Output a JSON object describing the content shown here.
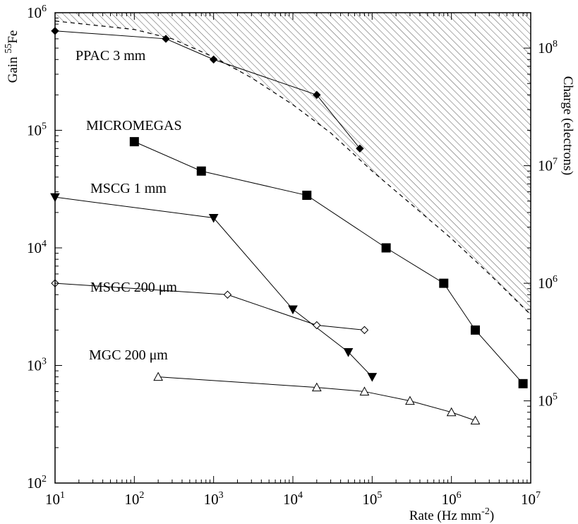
{
  "chart_data": {
    "type": "line",
    "title": "",
    "xlabel": "Rate (Hz mm",
    "xlabel_exp": "-2",
    "xlabel_tail": ")",
    "ylabel_prefix": "Gain ",
    "ylabel_exp": "55",
    "ylabel_suffix": "Fe",
    "y2label": "Charge (electrons)",
    "x_scale": "log",
    "y_scale": "log",
    "xlim": [
      10,
      10000000
    ],
    "ylim": [
      100,
      1000000
    ],
    "y2lim": [
      20000,
      200000000
    ],
    "x_ticks": [
      {
        "base": "10",
        "exp": "1",
        "value": 10
      },
      {
        "base": "10",
        "exp": "2",
        "value": 100
      },
      {
        "base": "10",
        "exp": "3",
        "value": 1000
      },
      {
        "base": "10",
        "exp": "4",
        "value": 10000
      },
      {
        "base": "10",
        "exp": "5",
        "value": 100000
      },
      {
        "base": "10",
        "exp": "6",
        "value": 1000000
      },
      {
        "base": "10",
        "exp": "7",
        "value": 10000000
      }
    ],
    "y_ticks": [
      {
        "base": "10",
        "exp": "2",
        "value": 100
      },
      {
        "base": "10",
        "exp": "3",
        "value": 1000
      },
      {
        "base": "10",
        "exp": "4",
        "value": 10000
      },
      {
        "base": "10",
        "exp": "5",
        "value": 100000
      },
      {
        "base": "10",
        "exp": "6",
        "value": 1000000
      }
    ],
    "y2_ticks": [
      {
        "base": "10",
        "exp": "5",
        "value": 100000
      },
      {
        "base": "10",
        "exp": "6",
        "value": 1000000
      },
      {
        "base": "10",
        "exp": "7",
        "value": 10000000
      },
      {
        "base": "10",
        "exp": "8",
        "value": 100000000
      }
    ],
    "limit_curve": {
      "style": "dashed",
      "shaded_region": "hatched",
      "x": [
        10,
        100,
        300,
        1000,
        3000,
        10000,
        30000,
        100000,
        300000,
        1000000,
        3000000,
        10000000
      ],
      "y": [
        850000,
        720000,
        600000,
        420000,
        280000,
        165000,
        95000,
        45000,
        24000,
        12000,
        6000,
        2700
      ]
    },
    "series": [
      {
        "name": "PPAC 3 mm",
        "marker": "filled-diamond",
        "x": [
          10,
          250,
          1000,
          20000,
          70000
        ],
        "y": [
          700000,
          600000,
          400000,
          200000,
          70000
        ]
      },
      {
        "name": "MICROMEGAS",
        "marker": "filled-square",
        "x": [
          100,
          700,
          15000,
          150000,
          800000,
          2000000,
          8000000
        ],
        "y": [
          80000,
          45000,
          28000,
          10000,
          5000,
          2000,
          700
        ]
      },
      {
        "name": "MSCG 1 mm",
        "marker": "filled-triangle-down",
        "x": [
          10,
          1000,
          10000,
          50000,
          100000
        ],
        "y": [
          27000,
          18000,
          3000,
          1300,
          800
        ]
      },
      {
        "name": "MSGC 200 μm",
        "marker": "open-diamond",
        "x": [
          10,
          1500,
          20000,
          80000
        ],
        "y": [
          5000,
          4000,
          2200,
          2000
        ]
      },
      {
        "name": "MGC 200 μm",
        "marker": "open-triangle-up",
        "x": [
          200,
          20000,
          80000,
          300000,
          1000000,
          2000000
        ],
        "y": [
          800,
          650,
          600,
          500,
          400,
          340
        ]
      }
    ]
  }
}
